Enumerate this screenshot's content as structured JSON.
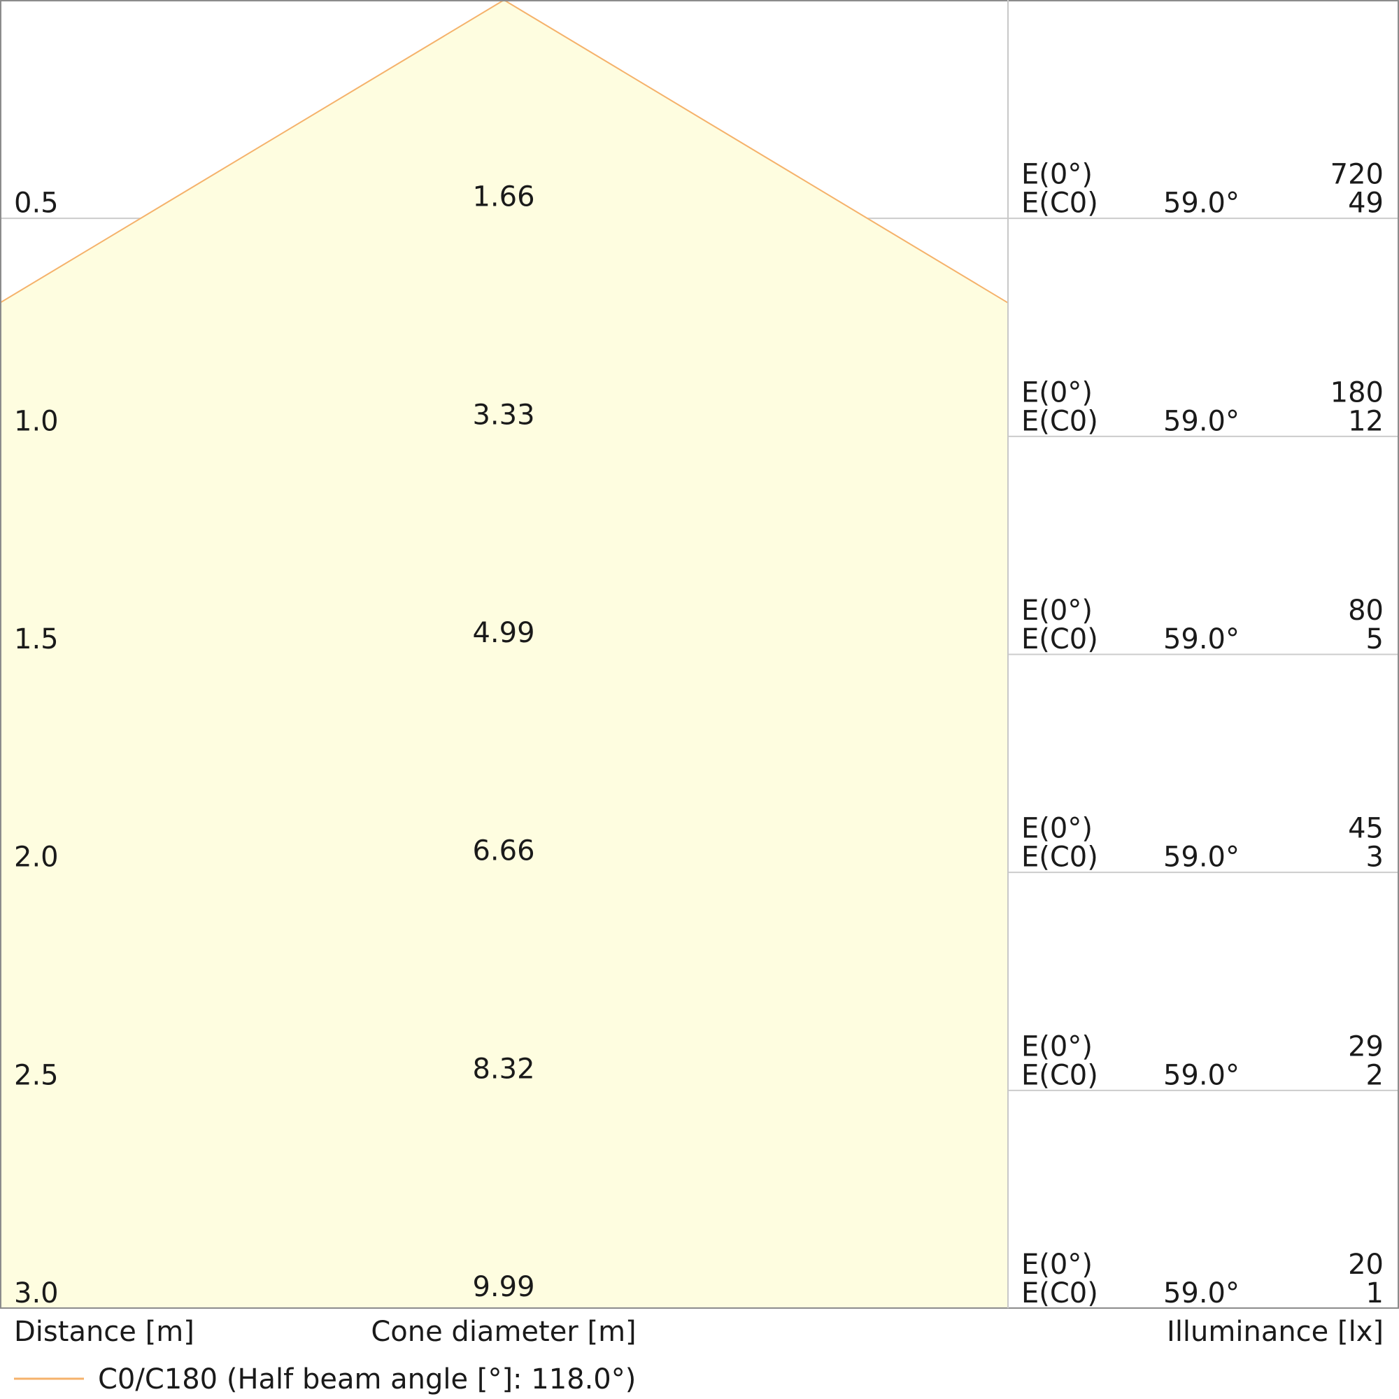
{
  "chart_data": {
    "type": "area",
    "title": "",
    "series": [
      {
        "name": "C0/C180 (Half beam angle [°]: 118.0°)",
        "color": "#f5b26b",
        "fill": "#fefde0",
        "half_beam_angle_deg": 59.0
      }
    ],
    "rows": [
      {
        "distance": "0.5",
        "diameter": "1.66",
        "e0_label": "E(0°)",
        "e0": "720",
        "ec0_label": "E(C0)",
        "angle": "59.0°",
        "ec0": "49"
      },
      {
        "distance": "1.0",
        "diameter": "3.33",
        "e0_label": "E(0°)",
        "e0": "180",
        "ec0_label": "E(C0)",
        "angle": "59.0°",
        "ec0": "12"
      },
      {
        "distance": "1.5",
        "diameter": "4.99",
        "e0_label": "E(0°)",
        "e0": "80",
        "ec0_label": "E(C0)",
        "angle": "59.0°",
        "ec0": "5"
      },
      {
        "distance": "2.0",
        "diameter": "6.66",
        "e0_label": "E(0°)",
        "e0": "45",
        "ec0_label": "E(C0)",
        "angle": "59.0°",
        "ec0": "3"
      },
      {
        "distance": "2.5",
        "diameter": "8.32",
        "e0_label": "E(0°)",
        "e0": "29",
        "ec0_label": "E(C0)",
        "angle": "59.0°",
        "ec0": "2"
      },
      {
        "distance": "3.0",
        "diameter": "9.99",
        "e0_label": "E(0°)",
        "e0": "20",
        "ec0_label": "E(C0)",
        "angle": "59.0°",
        "ec0": "1"
      }
    ],
    "axis_labels": {
      "distance": "Distance [m]",
      "cone": "Cone diameter [m]",
      "illuminance": "Illuminance [lx]"
    },
    "ylim": [
      0,
      3.0
    ],
    "grid": true,
    "legend": "bottom-left"
  }
}
